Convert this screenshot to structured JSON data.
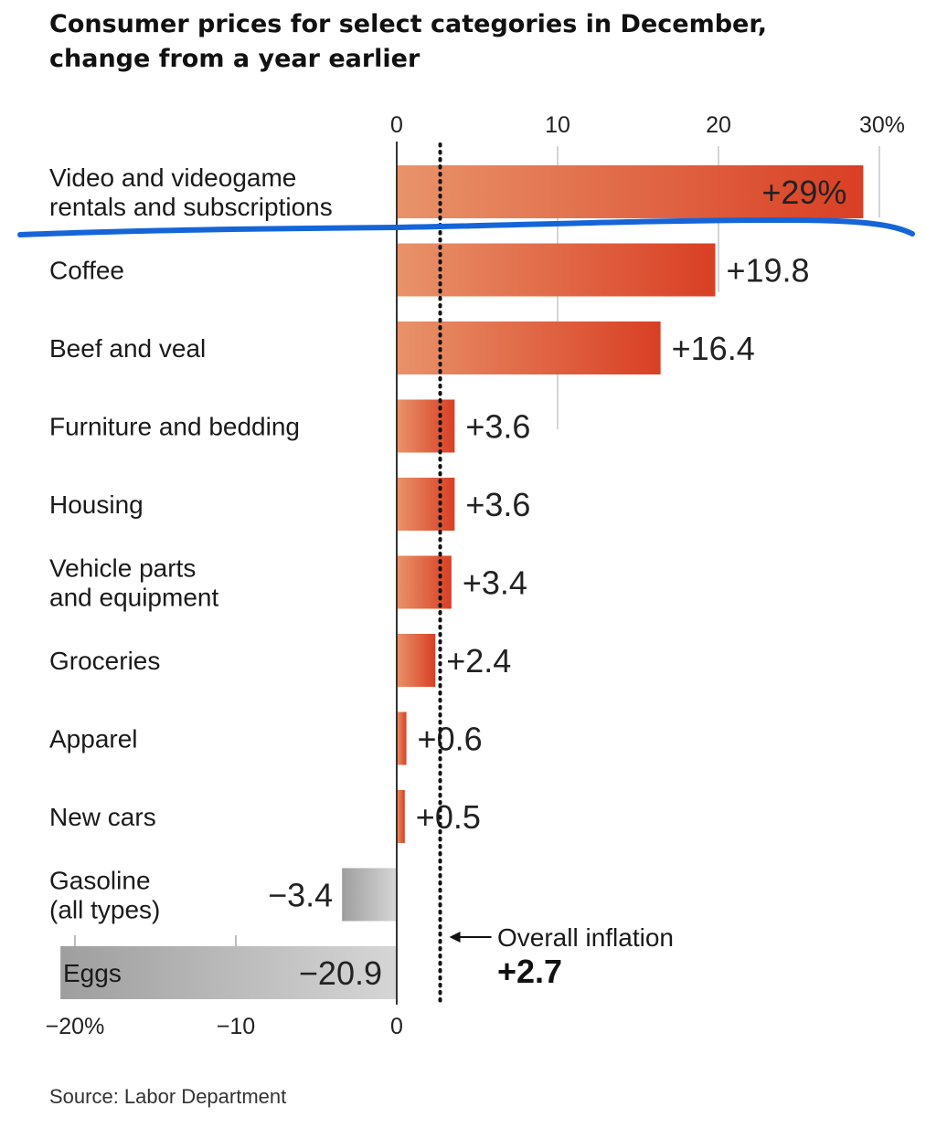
{
  "title_lines": [
    "Consumer prices for select categories in December,",
    "change from a year earlier"
  ],
  "source": "Source: Labor Department",
  "colors": {
    "positive_start": "#e8936a",
    "positive_end": "#d93f24",
    "negative_light": "#d6d6d6",
    "negative_dark": "#9e9e9e",
    "highlight_line": "#1565d8"
  },
  "chart_data": {
    "type": "bar",
    "orientation": "horizontal",
    "title": "Consumer prices for select categories in December, change from a year earlier",
    "xlim": [
      -20.9,
      29
    ],
    "grid": true,
    "top_axis_ticks": [
      "0",
      "10",
      "20",
      "30%"
    ],
    "bottom_axis_ticks": [
      "−20%",
      "−10",
      "0"
    ],
    "bars": [
      {
        "label": [
          "Video and videogame",
          "rentals and subscriptions"
        ],
        "value": 29,
        "value_label": "+29%"
      },
      {
        "label": [
          "Coffee"
        ],
        "value": 19.8,
        "value_label": "+19.8"
      },
      {
        "label": [
          "Beef and veal"
        ],
        "value": 16.4,
        "value_label": "+16.4"
      },
      {
        "label": [
          "Furniture and bedding"
        ],
        "value": 3.6,
        "value_label": "+3.6"
      },
      {
        "label": [
          "Housing"
        ],
        "value": 3.6,
        "value_label": "+3.6"
      },
      {
        "label": [
          "Vehicle parts",
          "and equipment"
        ],
        "value": 3.4,
        "value_label": "+3.4"
      },
      {
        "label": [
          "Groceries"
        ],
        "value": 2.4,
        "value_label": "+2.4"
      },
      {
        "label": [
          "Apparel"
        ],
        "value": 0.6,
        "value_label": "+0.6"
      },
      {
        "label": [
          "New cars"
        ],
        "value": 0.5,
        "value_label": "+0.5"
      },
      {
        "label": [
          "Gasoline",
          "(all types)"
        ],
        "value": -3.4,
        "value_label": "−3.4"
      },
      {
        "label": [
          "Eggs"
        ],
        "value": -20.9,
        "value_label": "−20.9"
      }
    ],
    "reference_line": {
      "value": 2.7,
      "label": "Overall inflation",
      "value_label": "+2.7"
    }
  }
}
